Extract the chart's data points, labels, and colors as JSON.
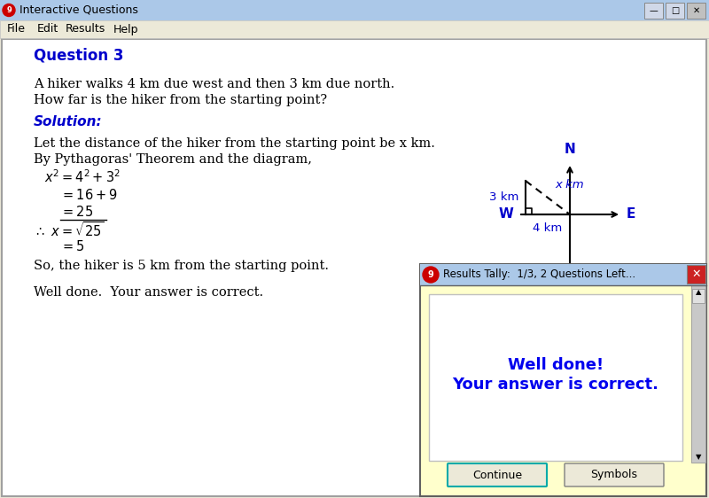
{
  "title_bar_text": "Interactive Questions",
  "menu_items": [
    "File",
    "Edit",
    "Results",
    "Help"
  ],
  "question_label": "Question 3",
  "question_text_line1": "A hiker walks 4 km due west and then 3 km due north.",
  "question_text_line2": "How far is the hiker from the starting point?",
  "solution_label": "Solution:",
  "sol_line1": "Let the distance of the hiker from the starting point be x km.",
  "sol_line2": "By Pythagoras' Theorem and the diagram,",
  "conclusion": "So, the hiker is 5 km from the starting point.",
  "correct_text": "Well done.  Your answer is correct.",
  "popup_title": "Results Tally:  1/3, 2 Questions Left...",
  "popup_message_line1": "Well done!",
  "popup_message_line2": "Your answer is correct.",
  "btn1": "Continue",
  "btn2": "Symbols",
  "bg_color": "#ece9d8",
  "window_bg": "#ffffff",
  "blue_color": "#0000cc",
  "solution_italic_color": "#0000cc",
  "diagram_text_color": "#0000cc",
  "popup_bg": "#ffffcc",
  "popup_title_bg": "#abc8e8",
  "red_circle_color": "#cc0000",
  "titlebar_bg": "#abc8e8",
  "menubar_bg": "#ece9d8",
  "scrollbar_bg": "#c8c8c8",
  "btn_bg": "#ece9d8"
}
